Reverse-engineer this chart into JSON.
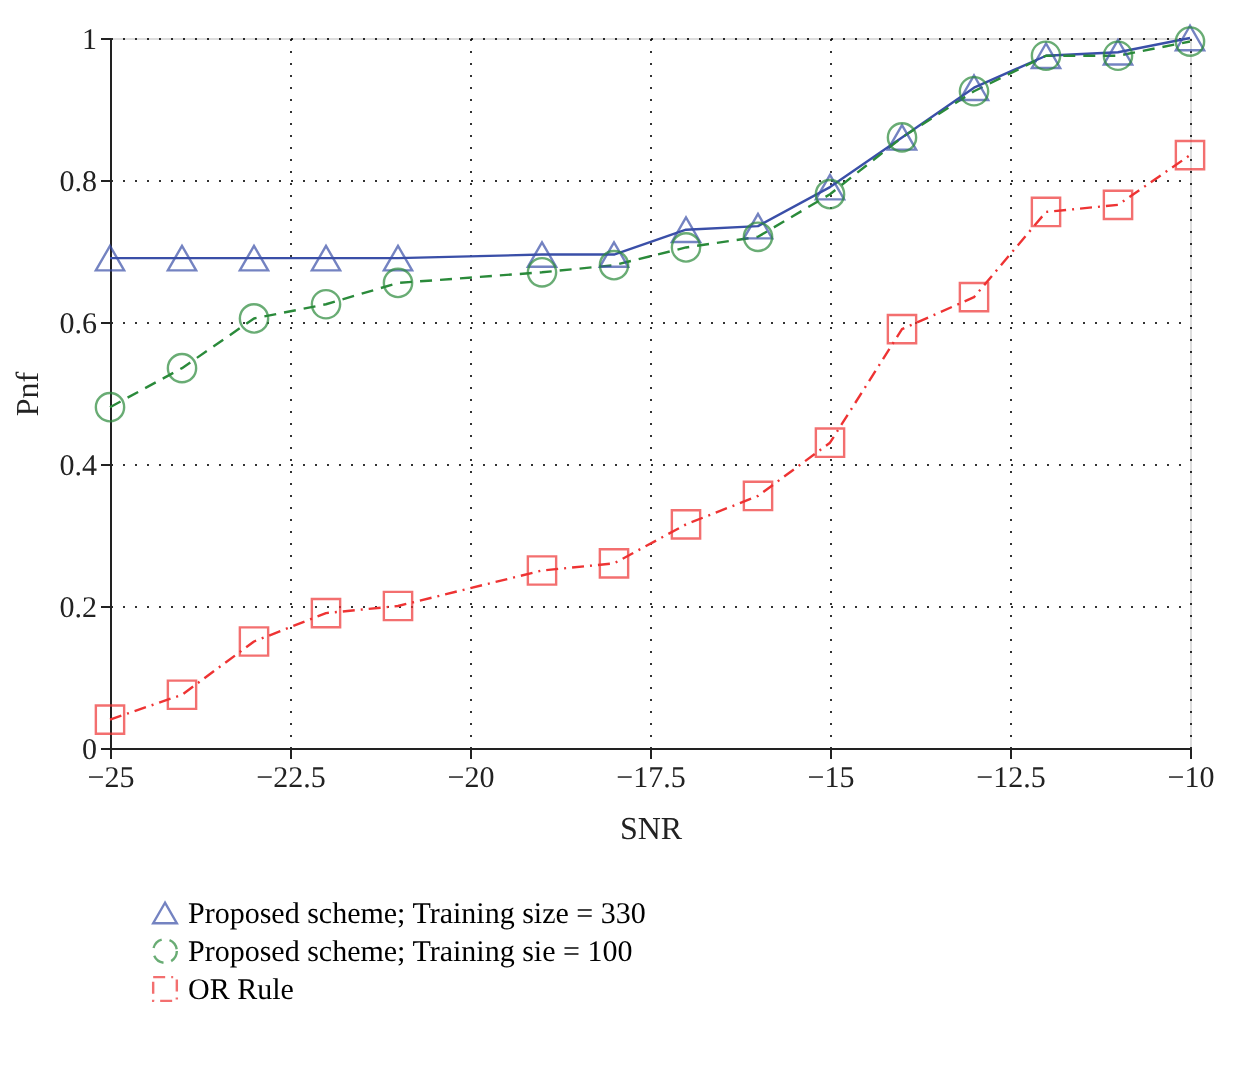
{
  "chart_data": {
    "type": "line",
    "xlabel": "SNR",
    "ylabel": "Pnf",
    "x": [
      -25,
      -24,
      -23,
      -22,
      -21,
      -19,
      -18,
      -17,
      -16,
      -15,
      -14,
      -13,
      -12,
      -11,
      -10
    ],
    "series": [
      {
        "name": "Proposed scheme; Training size = 330",
        "color": "#3a4fa8",
        "marker": "triangle",
        "line_style": "solid",
        "values": [
          0.69,
          0.69,
          0.69,
          0.69,
          0.69,
          0.695,
          0.695,
          0.73,
          0.735,
          0.79,
          0.86,
          0.93,
          0.975,
          0.98,
          1.0
        ]
      },
      {
        "name": "Proposed scheme; Training sie = 100",
        "color": "#2a8a3a",
        "marker": "circle",
        "line_style": "dashed",
        "values": [
          0.48,
          0.535,
          0.605,
          0.625,
          0.655,
          0.67,
          0.68,
          0.705,
          0.72,
          0.78,
          0.86,
          0.925,
          0.975,
          0.975,
          0.995
        ]
      },
      {
        "name": "OR Rule",
        "color": "#ee3333",
        "marker": "square",
        "line_style": "dashdot",
        "values": [
          0.04,
          0.075,
          0.15,
          0.19,
          0.2,
          0.25,
          0.26,
          0.315,
          0.355,
          0.43,
          0.59,
          0.635,
          0.755,
          0.765,
          0.835
        ]
      }
    ],
    "xlim": [
      -25,
      -10
    ],
    "xticks": [
      -25,
      -22.5,
      -20,
      -17.5,
      -15,
      -12.5,
      -10
    ],
    "ylim": [
      0,
      1
    ],
    "yticks": [
      0,
      0.2,
      0.4,
      0.6,
      0.8,
      1
    ],
    "grid": true,
    "legend": "bottom left"
  }
}
